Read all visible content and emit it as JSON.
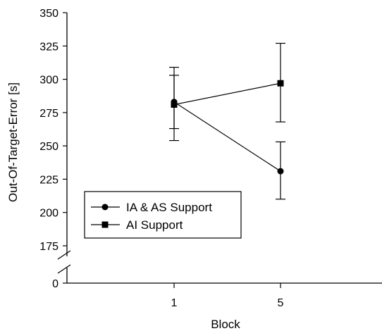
{
  "chart_data": {
    "type": "line",
    "xlabel": "Block",
    "ylabel": "Out-Of-Target-Error [s]",
    "categories": [
      "1",
      "5"
    ],
    "y_ticks": [
      0,
      175,
      200,
      225,
      250,
      275,
      300,
      325,
      350
    ],
    "y_tick_labels": [
      "0",
      "175",
      "200",
      "225",
      "250",
      "275",
      "300",
      "325",
      "350"
    ],
    "ylim": [
      175,
      350
    ],
    "axis_break": {
      "between": [
        0,
        175
      ]
    },
    "grid": false,
    "legend_position": "lower-left",
    "series": [
      {
        "name": "IA & AS Support",
        "marker": "circle",
        "values": [
          283,
          231
        ],
        "error_low": [
          263,
          210
        ],
        "error_high": [
          303,
          253
        ]
      },
      {
        "name": "AI Support",
        "marker": "square",
        "values": [
          281,
          297
        ],
        "error_low": [
          254,
          268
        ],
        "error_high": [
          309,
          327
        ]
      }
    ],
    "colors": {
      "line": "#000000",
      "marker": "#000000"
    }
  }
}
